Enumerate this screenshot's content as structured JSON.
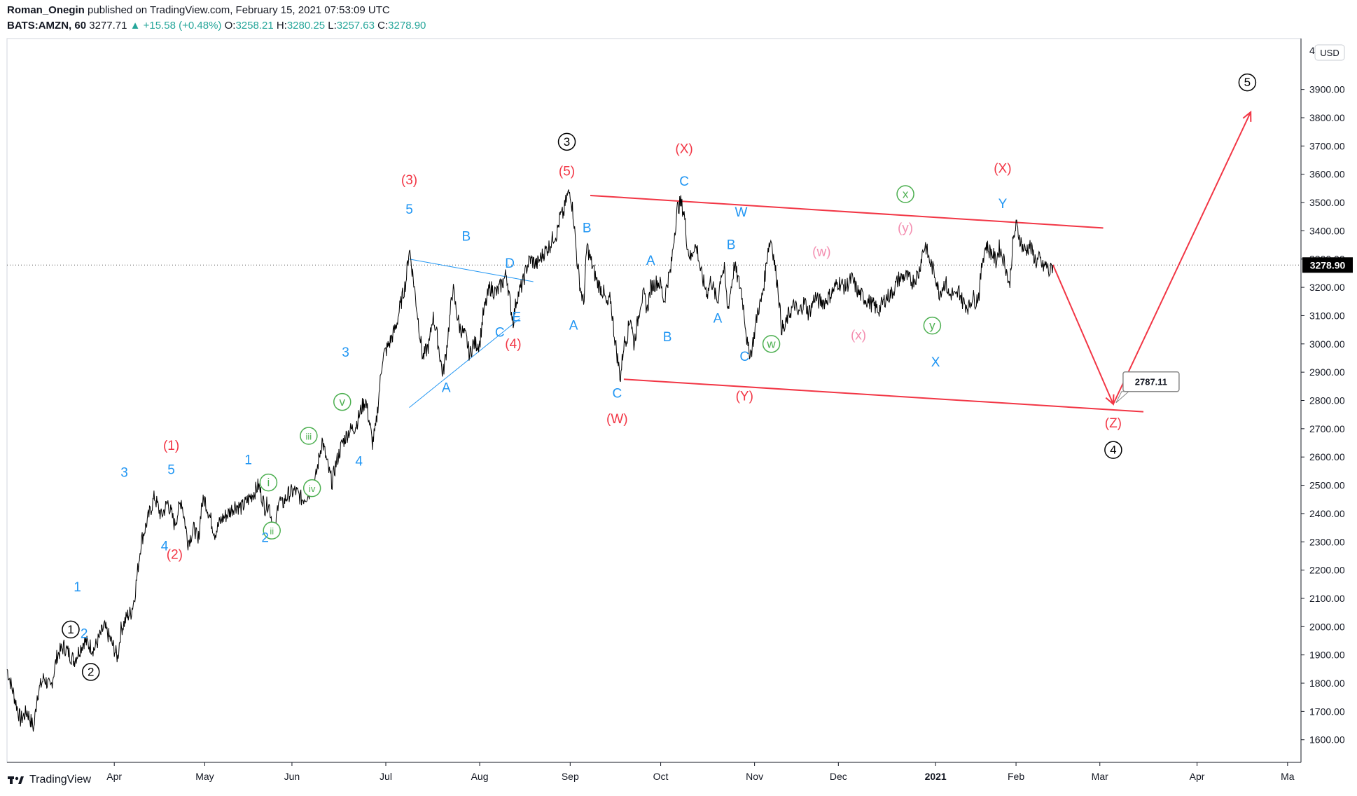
{
  "header": {
    "author": "Roman_Onegin",
    "published": "published on TradingView.com, February 15, 2021 07:53:09 UTC",
    "symbol": "BATS:AMZN, 60",
    "last": "3277.71",
    "change": "+15.58 (+0.48%)",
    "o_label": "O:",
    "o_value": "3258.21",
    "h_label": "H:",
    "h_value": "3280.25",
    "l_label": "L:",
    "l_value": "3257.63",
    "c_label": "C:",
    "c_value": "3278.90"
  },
  "footer": {
    "brand": "TradingView"
  },
  "colors": {
    "red": "#f23645",
    "blue": "#2196f3",
    "green": "#4caf50",
    "pink": "#f48fb1",
    "black": "#000000",
    "priceline": "#131722"
  },
  "chart_data": {
    "type": "line",
    "title": "BATS:AMZN, 60",
    "currency": "USD",
    "ylim": [
      1520,
      4080
    ],
    "y_ticks": [
      1600,
      1700,
      1800,
      1900,
      2000,
      2100,
      2200,
      2300,
      2400,
      2500,
      2600,
      2700,
      2800,
      2900,
      3000,
      3100,
      3200,
      3300,
      3400,
      3500,
      3600,
      3700,
      3800,
      3900
    ],
    "y_tick_labels": [
      "1600.00",
      "1700.00",
      "1800.00",
      "1900.00",
      "2000.00",
      "2100.00",
      "2200.00",
      "2300.00",
      "2400.00",
      "2500.00",
      "2600.00",
      "2700.00",
      "2800.00",
      "2900.00",
      "3000.00",
      "3100.00",
      "3200.00",
      "3300.00",
      "3400.00",
      "3500.00",
      "3600.00",
      "3700.00",
      "3800.00",
      "3900.00"
    ],
    "top_partial_label": "4",
    "xlim": [
      -12,
      374
    ],
    "x_ticks": [
      {
        "day": 20,
        "label": "Apr"
      },
      {
        "day": 47,
        "label": "May"
      },
      {
        "day": 73,
        "label": "Jun"
      },
      {
        "day": 101,
        "label": "Jul"
      },
      {
        "day": 129,
        "label": "Aug"
      },
      {
        "day": 156,
        "label": "Sep"
      },
      {
        "day": 183,
        "label": "Oct"
      },
      {
        "day": 211,
        "label": "Nov"
      },
      {
        "day": 236,
        "label": "Dec"
      },
      {
        "day": 265,
        "label": "2021"
      },
      {
        "day": 289,
        "label": "Feb"
      },
      {
        "day": 314,
        "label": "Mar"
      },
      {
        "day": 343,
        "label": "Apr"
      },
      {
        "day": 370,
        "label": "Ma"
      }
    ],
    "last_price": 3278.9,
    "last_price_label": "3278.90",
    "target_label": "2787.11",
    "price_series": [
      [
        -12,
        1850
      ],
      [
        -10,
        1760
      ],
      [
        -8,
        1670
      ],
      [
        -6,
        1700
      ],
      [
        -4,
        1640
      ],
      [
        -3,
        1760
      ],
      [
        -1,
        1820
      ],
      [
        1,
        1780
      ],
      [
        3,
        1900
      ],
      [
        5,
        1930
      ],
      [
        8,
        1880
      ],
      [
        11,
        1950
      ],
      [
        14,
        1920
      ],
      [
        17,
        2000
      ],
      [
        19,
        1950
      ],
      [
        21,
        1890
      ],
      [
        22,
        1990
      ],
      [
        24,
        2040
      ],
      [
        25,
        2050
      ],
      [
        26,
        2100
      ],
      [
        27,
        2200
      ],
      [
        28,
        2300
      ],
      [
        30,
        2380
      ],
      [
        32,
        2460
      ],
      [
        34,
        2390
      ],
      [
        36,
        2440
      ],
      [
        38,
        2360
      ],
      [
        40,
        2450
      ],
      [
        42,
        2300
      ],
      [
        44,
        2350
      ],
      [
        45,
        2290
      ],
      [
        46,
        2430
      ],
      [
        47,
        2450
      ],
      [
        48,
        2410
      ],
      [
        50,
        2330
      ],
      [
        52,
        2380
      ],
      [
        54,
        2400
      ],
      [
        56,
        2430
      ],
      [
        58,
        2420
      ],
      [
        60,
        2450
      ],
      [
        62,
        2480
      ],
      [
        63,
        2500
      ],
      [
        65,
        2420
      ],
      [
        66,
        2440
      ],
      [
        67,
        2380
      ],
      [
        68,
        2330
      ],
      [
        69,
        2460
      ],
      [
        70,
        2430
      ],
      [
        72,
        2470
      ],
      [
        74,
        2480
      ],
      [
        76,
        2450
      ],
      [
        78,
        2470
      ],
      [
        80,
        2520
      ],
      [
        82,
        2660
      ],
      [
        84,
        2550
      ],
      [
        85,
        2510
      ],
      [
        86,
        2570
      ],
      [
        88,
        2650
      ],
      [
        90,
        2690
      ],
      [
        92,
        2710
      ],
      [
        94,
        2780
      ],
      [
        95,
        2800
      ],
      [
        96,
        2730
      ],
      [
        97,
        2650
      ],
      [
        98,
        2700
      ],
      [
        100,
        2950
      ],
      [
        102,
        3000
      ],
      [
        104,
        3060
      ],
      [
        106,
        3170
      ],
      [
        107,
        3220
      ],
      [
        108,
        3340
      ],
      [
        109,
        3250
      ],
      [
        110,
        3150
      ],
      [
        111,
        3050
      ],
      [
        112,
        2950
      ],
      [
        114,
        3000
      ],
      [
        115,
        3100
      ],
      [
        116,
        3050
      ],
      [
        118,
        2890
      ],
      [
        119,
        2970
      ],
      [
        121,
        3200
      ],
      [
        122,
        3120
      ],
      [
        123,
        3060
      ],
      [
        125,
        3020
      ],
      [
        126,
        2960
      ],
      [
        127,
        3000
      ],
      [
        129,
        3000
      ],
      [
        130,
        3100
      ],
      [
        132,
        3200
      ],
      [
        134,
        3180
      ],
      [
        136,
        3220
      ],
      [
        137,
        3250
      ],
      [
        138,
        3150
      ],
      [
        139,
        3080
      ],
      [
        140,
        3160
      ],
      [
        142,
        3220
      ],
      [
        143,
        3270
      ],
      [
        144,
        3300
      ],
      [
        146,
        3280
      ],
      [
        148,
        3320
      ],
      [
        150,
        3350
      ],
      [
        151,
        3380
      ],
      [
        152,
        3390
      ],
      [
        153,
        3450
      ],
      [
        154,
        3460
      ],
      [
        155,
        3520
      ],
      [
        156,
        3540
      ],
      [
        157,
        3450
      ],
      [
        158,
        3300
      ],
      [
        159,
        3200
      ],
      [
        160,
        3140
      ],
      [
        161,
        3350
      ],
      [
        162,
        3300
      ],
      [
        163,
        3260
      ],
      [
        164,
        3220
      ],
      [
        165,
        3200
      ],
      [
        166,
        3180
      ],
      [
        167,
        3130
      ],
      [
        168,
        3160
      ],
      [
        169,
        3050
      ],
      [
        170,
        2960
      ],
      [
        171,
        2880
      ],
      [
        172,
        3000
      ],
      [
        173,
        3030
      ],
      [
        174,
        3100
      ],
      [
        175,
        3000
      ],
      [
        176,
        3070
      ],
      [
        177,
        3150
      ],
      [
        178,
        3170
      ],
      [
        179,
        3120
      ],
      [
        180,
        3200
      ],
      [
        182,
        3220
      ],
      [
        183,
        3210
      ],
      [
        184,
        3150
      ],
      [
        185,
        3220
      ],
      [
        186,
        3260
      ],
      [
        187,
        3380
      ],
      [
        188,
        3480
      ],
      [
        189,
        3500
      ],
      [
        190,
        3460
      ],
      [
        191,
        3340
      ],
      [
        192,
        3300
      ],
      [
        193,
        3350
      ],
      [
        194,
        3330
      ],
      [
        195,
        3250
      ],
      [
        196,
        3210
      ],
      [
        197,
        3180
      ],
      [
        198,
        3230
      ],
      [
        199,
        3180
      ],
      [
        200,
        3150
      ],
      [
        201,
        3250
      ],
      [
        202,
        3260
      ],
      [
        203,
        3120
      ],
      [
        204,
        3200
      ],
      [
        205,
        3280
      ],
      [
        206,
        3230
      ],
      [
        207,
        3190
      ],
      [
        208,
        3100
      ],
      [
        209,
        2980
      ],
      [
        210,
        2970
      ],
      [
        211,
        3040
      ],
      [
        212,
        3120
      ],
      [
        213,
        3150
      ],
      [
        214,
        3230
      ],
      [
        215,
        3340
      ],
      [
        216,
        3370
      ],
      [
        217,
        3280
      ],
      [
        218,
        3200
      ],
      [
        219,
        3060
      ],
      [
        220,
        3050
      ],
      [
        221,
        3100
      ],
      [
        222,
        3120
      ],
      [
        223,
        3140
      ],
      [
        224,
        3100
      ],
      [
        225,
        3130
      ],
      [
        226,
        3150
      ],
      [
        227,
        3110
      ],
      [
        228,
        3130
      ],
      [
        229,
        3170
      ],
      [
        230,
        3150
      ],
      [
        232,
        3150
      ],
      [
        234,
        3180
      ],
      [
        236,
        3220
      ],
      [
        238,
        3200
      ],
      [
        240,
        3230
      ],
      [
        242,
        3180
      ],
      [
        244,
        3160
      ],
      [
        246,
        3140
      ],
      [
        248,
        3120
      ],
      [
        250,
        3160
      ],
      [
        252,
        3180
      ],
      [
        254,
        3230
      ],
      [
        256,
        3240
      ],
      [
        258,
        3220
      ],
      [
        260,
        3250
      ],
      [
        261,
        3320
      ],
      [
        262,
        3350
      ],
      [
        263,
        3300
      ],
      [
        264,
        3270
      ],
      [
        265,
        3240
      ],
      [
        266,
        3180
      ],
      [
        267,
        3200
      ],
      [
        268,
        3220
      ],
      [
        269,
        3170
      ],
      [
        270,
        3180
      ],
      [
        271,
        3160
      ],
      [
        272,
        3190
      ],
      [
        273,
        3150
      ],
      [
        274,
        3140
      ],
      [
        275,
        3130
      ],
      [
        276,
        3170
      ],
      [
        277,
        3150
      ],
      [
        278,
        3180
      ],
      [
        279,
        3300
      ],
      [
        280,
        3350
      ],
      [
        281,
        3330
      ],
      [
        282,
        3320
      ],
      [
        283,
        3290
      ],
      [
        284,
        3340
      ],
      [
        285,
        3310
      ],
      [
        286,
        3270
      ],
      [
        287,
        3200
      ],
      [
        288,
        3350
      ],
      [
        289,
        3420
      ],
      [
        290,
        3380
      ],
      [
        291,
        3340
      ],
      [
        292,
        3330
      ],
      [
        293,
        3350
      ],
      [
        294,
        3320
      ],
      [
        295,
        3290
      ],
      [
        296,
        3300
      ],
      [
        297,
        3270
      ],
      [
        298,
        3280
      ],
      [
        299,
        3250
      ],
      [
        300,
        3278.9
      ]
    ],
    "trendlines": [
      {
        "name": "channel-upper",
        "color": "red",
        "from": [
          162,
          3525
        ],
        "to": [
          315,
          3410
        ]
      },
      {
        "name": "channel-lower",
        "color": "red",
        "from": [
          172,
          2875
        ],
        "to": [
          327,
          2760
        ]
      },
      {
        "name": "triangle-upper",
        "color": "blue",
        "from": [
          108,
          3300
        ],
        "to": [
          145,
          3220
        ]
      },
      {
        "name": "triangle-lower",
        "color": "blue",
        "from": [
          108,
          2775
        ],
        "to": [
          141,
          3090
        ]
      },
      {
        "name": "projection-down",
        "color": "red",
        "from": [
          300,
          3280
        ],
        "to": [
          318,
          2787
        ]
      },
      {
        "name": "projection-up",
        "color": "red",
        "from": [
          318,
          2787
        ],
        "to": [
          359,
          3820
        ]
      }
    ],
    "wave_labels": [
      {
        "t": "1",
        "day": 7,
        "v": 1975,
        "c": "black",
        "circ": true
      },
      {
        "t": "2",
        "day": 13,
        "v": 1825,
        "c": "black",
        "circ": true
      },
      {
        "t": "2",
        "day": 11,
        "v": 1960,
        "c": "blue"
      },
      {
        "t": "1",
        "day": 9,
        "v": 2125,
        "c": "blue"
      },
      {
        "t": "3",
        "day": 23,
        "v": 2530,
        "c": "blue"
      },
      {
        "t": "4",
        "day": 35,
        "v": 2270,
        "c": "blue"
      },
      {
        "t": "5",
        "day": 37,
        "v": 2540,
        "c": "blue"
      },
      {
        "t": "(1)",
        "day": 37,
        "v": 2625,
        "c": "red"
      },
      {
        "t": "(2)",
        "day": 38,
        "v": 2240,
        "c": "red"
      },
      {
        "t": "1",
        "day": 60,
        "v": 2575,
        "c": "blue"
      },
      {
        "t": "i",
        "day": 66,
        "v": 2495,
        "c": "green",
        "circ": true
      },
      {
        "t": "ii",
        "day": 67,
        "v": 2325,
        "c": "green",
        "circ": true
      },
      {
        "t": "2",
        "day": 65,
        "v": 2300,
        "c": "blue"
      },
      {
        "t": "iii",
        "day": 78,
        "v": 2660,
        "c": "green",
        "circ": true
      },
      {
        "t": "iv",
        "day": 79,
        "v": 2475,
        "c": "green",
        "circ": true
      },
      {
        "t": "v",
        "day": 88,
        "v": 2780,
        "c": "green",
        "circ": true
      },
      {
        "t": "3",
        "day": 89,
        "v": 2955,
        "c": "blue"
      },
      {
        "t": "4",
        "day": 93,
        "v": 2570,
        "c": "blue"
      },
      {
        "t": "(3)",
        "day": 108,
        "v": 3565,
        "c": "red"
      },
      {
        "t": "5",
        "day": 108,
        "v": 3460,
        "c": "blue"
      },
      {
        "t": "A",
        "day": 119,
        "v": 2830,
        "c": "blue"
      },
      {
        "t": "B",
        "day": 125,
        "v": 3365,
        "c": "blue"
      },
      {
        "t": "C",
        "day": 135,
        "v": 3025,
        "c": "blue"
      },
      {
        "t": "D",
        "day": 138,
        "v": 3270,
        "c": "blue"
      },
      {
        "t": "E",
        "day": 140,
        "v": 3080,
        "c": "blue"
      },
      {
        "t": "(4)",
        "day": 139,
        "v": 2985,
        "c": "red"
      },
      {
        "t": "3",
        "day": 155,
        "v": 3700,
        "c": "black",
        "circ": true
      },
      {
        "t": "(5)",
        "day": 155,
        "v": 3595,
        "c": "red"
      },
      {
        "t": "B",
        "day": 161,
        "v": 3395,
        "c": "blue"
      },
      {
        "t": "A",
        "day": 157,
        "v": 3050,
        "c": "blue"
      },
      {
        "t": "C",
        "day": 170,
        "v": 2810,
        "c": "blue"
      },
      {
        "t": "(W)",
        "day": 170,
        "v": 2720,
        "c": "red"
      },
      {
        "t": "A",
        "day": 180,
        "v": 3280,
        "c": "blue"
      },
      {
        "t": "B",
        "day": 185,
        "v": 3010,
        "c": "blue"
      },
      {
        "t": "(X)",
        "day": 190,
        "v": 3675,
        "c": "red"
      },
      {
        "t": "C",
        "day": 190,
        "v": 3560,
        "c": "blue"
      },
      {
        "t": "A",
        "day": 200,
        "v": 3075,
        "c": "blue"
      },
      {
        "t": "B",
        "day": 204,
        "v": 3335,
        "c": "blue"
      },
      {
        "t": "W",
        "day": 207,
        "v": 3450,
        "c": "blue"
      },
      {
        "t": "C",
        "day": 208,
        "v": 2940,
        "c": "blue"
      },
      {
        "t": "(Y)",
        "day": 208,
        "v": 2800,
        "c": "red"
      },
      {
        "t": "w",
        "day": 216,
        "v": 2985,
        "c": "green",
        "circ": true
      },
      {
        "t": "(w)",
        "day": 231,
        "v": 3310,
        "c": "pink"
      },
      {
        "t": "(x)",
        "day": 242,
        "v": 3015,
        "c": "pink"
      },
      {
        "t": "x",
        "day": 256,
        "v": 3515,
        "c": "green",
        "circ": true
      },
      {
        "t": "(y)",
        "day": 256,
        "v": 3395,
        "c": "pink"
      },
      {
        "t": "y",
        "day": 264,
        "v": 3050,
        "c": "green",
        "circ": true
      },
      {
        "t": "X",
        "day": 265,
        "v": 2920,
        "c": "blue"
      },
      {
        "t": "(X)",
        "day": 285,
        "v": 3605,
        "c": "red"
      },
      {
        "t": "Y",
        "day": 285,
        "v": 3480,
        "c": "blue"
      },
      {
        "t": "(Z)",
        "day": 318,
        "v": 2705,
        "c": "red"
      },
      {
        "t": "4",
        "day": 318,
        "v": 2610,
        "c": "black",
        "circ": true
      },
      {
        "t": "5",
        "day": 358,
        "v": 3910,
        "c": "black",
        "circ": true
      }
    ]
  }
}
